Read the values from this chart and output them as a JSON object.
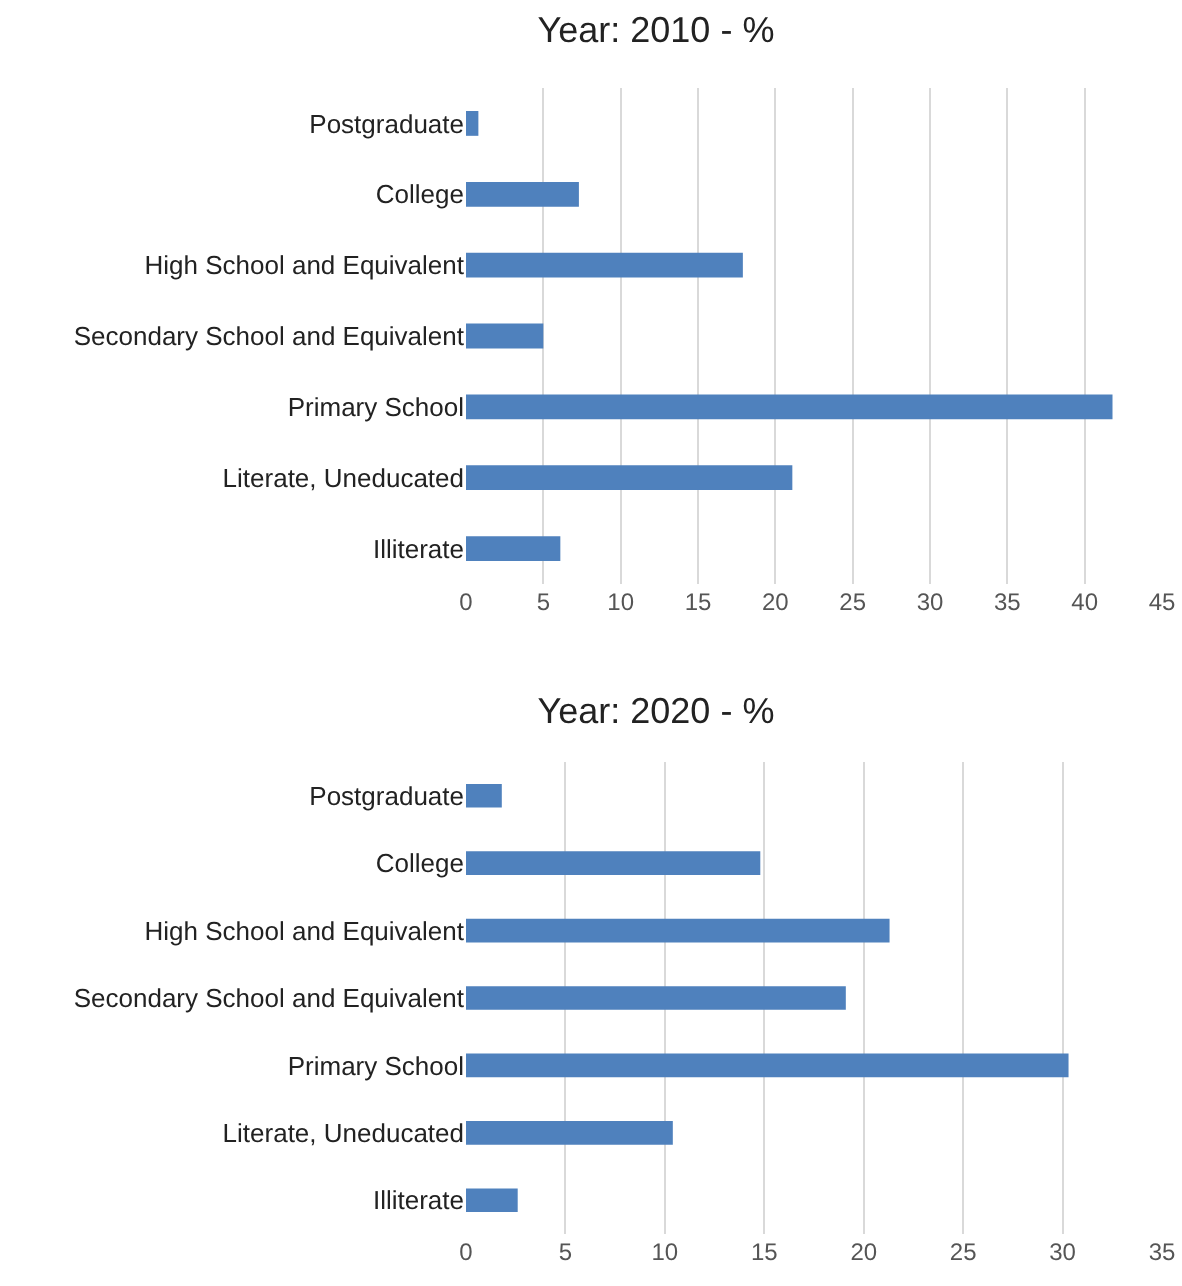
{
  "chart_data": [
    {
      "type": "bar",
      "orientation": "horizontal",
      "title": "Year: 2010 - %",
      "categories": [
        "Postgraduate",
        "College",
        "High School and Equivalent",
        "Secondary School and Equivalent",
        "Primary School",
        "Literate, Uneducated",
        "Illiterate"
      ],
      "values": [
        0.8,
        7.3,
        17.9,
        5.0,
        41.8,
        21.1,
        6.1
      ],
      "color": "#4f81bd",
      "xlim": [
        0,
        45
      ],
      "xticks": [
        0,
        5,
        10,
        15,
        20,
        25,
        30,
        35,
        40,
        45
      ],
      "grid": "x"
    },
    {
      "type": "bar",
      "orientation": "horizontal",
      "title": "Year: 2020 - %",
      "categories": [
        "Postgraduate",
        "College",
        "High School and Equivalent",
        "Secondary School and Equivalent",
        "Primary School",
        "Literate, Uneducated",
        "Illiterate"
      ],
      "values": [
        1.8,
        14.8,
        21.3,
        19.1,
        30.3,
        10.4,
        2.6
      ],
      "color": "#4f81bd",
      "xlim": [
        0,
        35
      ],
      "xticks": [
        0,
        5,
        10,
        15,
        20,
        25,
        30,
        35
      ],
      "grid": "x"
    }
  ]
}
